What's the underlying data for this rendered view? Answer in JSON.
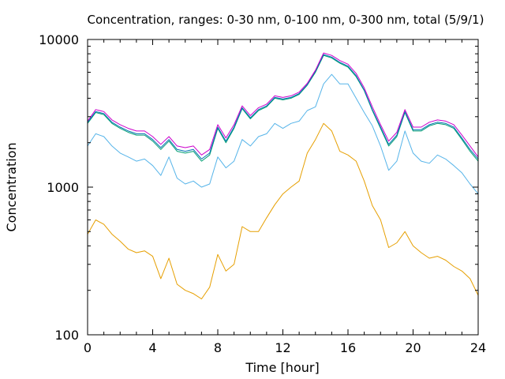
{
  "chart_data": {
    "type": "line",
    "title": "Concentration, ranges: 0-30 nm, 0-100 nm, 0-300 nm, total (5/9/1)",
    "xlabel": "Time [hour]",
    "ylabel": "Concentration",
    "xlim": [
      0,
      24
    ],
    "ylim": [
      100,
      10000
    ],
    "yscale": "log",
    "grid": false,
    "x_ticks": [
      0,
      4,
      8,
      12,
      16,
      20,
      24
    ],
    "x_tick_labels": [
      "0",
      "4",
      "8",
      "12",
      "16",
      "20",
      "24"
    ],
    "y_ticks": [
      100,
      1000,
      10000
    ],
    "y_tick_labels": [
      "100",
      "1000",
      "10000"
    ],
    "x": [
      0,
      0.5,
      1,
      1.5,
      2,
      2.5,
      3,
      3.5,
      4,
      4.5,
      5,
      5.5,
      6,
      6.5,
      7,
      7.5,
      8,
      8.5,
      9,
      9.5,
      10,
      10.5,
      11,
      11.5,
      12,
      12.5,
      13,
      13.5,
      14,
      14.5,
      15,
      15.5,
      16,
      16.5,
      17,
      17.5,
      18,
      18.5,
      19,
      19.5,
      20,
      20.5,
      21,
      21.5,
      22,
      22.5,
      23,
      23.5,
      24
    ],
    "series": [
      {
        "color": "#e69f00",
        "values": [
          480,
          600,
          560,
          480,
          430,
          380,
          360,
          370,
          340,
          240,
          330,
          220,
          200,
          190,
          175,
          210,
          350,
          270,
          300,
          540,
          500,
          500,
          620,
          760,
          900,
          1000,
          1100,
          1700,
          2100,
          2700,
          2400,
          1750,
          1650,
          1500,
          1100,
          750,
          600,
          390,
          420,
          500,
          400,
          360,
          330,
          340,
          320,
          290,
          270,
          240,
          185
        ]
      },
      {
        "color": "#56b4e9",
        "values": [
          1900,
          2300,
          2200,
          1900,
          1700,
          1600,
          1500,
          1550,
          1400,
          1200,
          1600,
          1150,
          1050,
          1100,
          1000,
          1050,
          1600,
          1350,
          1500,
          2100,
          1900,
          2200,
          2300,
          2700,
          2500,
          2700,
          2800,
          3300,
          3500,
          5000,
          5800,
          5000,
          5000,
          4000,
          3200,
          2600,
          1900,
          1300,
          1500,
          2400,
          1700,
          1500,
          1450,
          1650,
          1550,
          1400,
          1250,
          1050,
          900
        ]
      },
      {
        "color": "#009e73",
        "values": [
          2700,
          3200,
          3100,
          2700,
          2500,
          2350,
          2250,
          2250,
          2050,
          1800,
          2050,
          1750,
          1700,
          1750,
          1500,
          1650,
          2500,
          2000,
          2500,
          3400,
          2900,
          3300,
          3500,
          4000,
          3900,
          4000,
          4250,
          4900,
          6000,
          7800,
          7500,
          6900,
          6500,
          5600,
          4500,
          3300,
          2500,
          1900,
          2200,
          3200,
          2400,
          2400,
          2600,
          2700,
          2650,
          2500,
          2100,
          1750,
          1500
        ]
      },
      {
        "color": "#0072b2",
        "values": [
          2750,
          3250,
          3150,
          2750,
          2550,
          2400,
          2300,
          2300,
          2100,
          1850,
          2100,
          1800,
          1750,
          1800,
          1550,
          1700,
          2550,
          2050,
          2550,
          3450,
          2950,
          3350,
          3550,
          4050,
          3950,
          4050,
          4300,
          4950,
          6100,
          7900,
          7600,
          7000,
          6600,
          5700,
          4550,
          3350,
          2550,
          1950,
          2250,
          3250,
          2450,
          2450,
          2650,
          2750,
          2700,
          2550,
          2150,
          1800,
          1550
        ]
      },
      {
        "color": "#cc00cc",
        "values": [
          2800,
          3350,
          3250,
          2850,
          2650,
          2500,
          2400,
          2400,
          2200,
          1950,
          2200,
          1900,
          1850,
          1900,
          1650,
          1800,
          2650,
          2150,
          2650,
          3550,
          3050,
          3450,
          3650,
          4150,
          4050,
          4150,
          4400,
          5050,
          6200,
          8100,
          7800,
          7200,
          6800,
          5900,
          4700,
          3500,
          2650,
          2050,
          2350,
          3350,
          2550,
          2550,
          2750,
          2850,
          2800,
          2650,
          2250,
          1900,
          1600
        ]
      }
    ]
  }
}
